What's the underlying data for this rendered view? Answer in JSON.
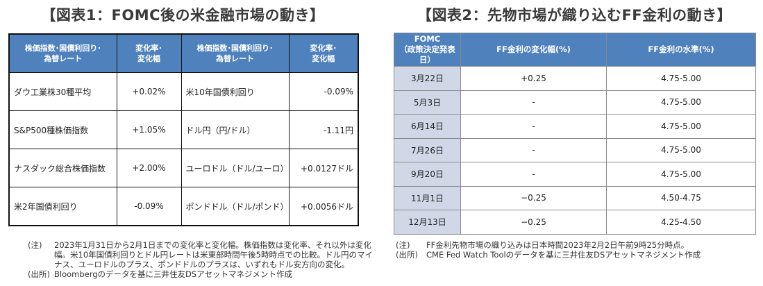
{
  "table1": {
    "title": "【図表1：FOMC後の米金融市場の動き】",
    "headers": [
      "株価指数･国債利回り･\n為替レート",
      "変化率･\n変化幅",
      "株価指数･国債利回り･\n為替レート",
      "変化率･\n変化幅"
    ],
    "rows": [
      [
        "ダウ工業株30種平均",
        "+0.02%",
        "米10年国債利回り",
        "-0.09%"
      ],
      [
        "S&P500種株価指数",
        "+1.05%",
        "ドル円（円/ドル）",
        "-1.11円"
      ],
      [
        "ナスダック総合株価指数",
        "+2.00%",
        "ユーロドル（ドル/ユーロ）",
        "+0.0127ドル"
      ],
      [
        "米2年国債利回り",
        "-0.09%",
        "ポンドドル（ドル/ポンド）",
        "+0.0056ドル"
      ]
    ],
    "note_label": "(注)",
    "note_text": "2023年1月31日から2月1日までの変化率と変化幅。株価指数は変化率、それ以外は変化幅。米10年国債利回りとドル円レートは米東部時間午後5時時点での比較。ドル円のマイナス、ユーロドルのプラス、ポンドドルのプラスは、いずれもドル安方向の変化。",
    "source_label": "(出所)",
    "source_text": "Bloombergのデータを基に三井住友DSアセットマネジメント作成"
  },
  "table2": {
    "title": "【図表2：先物市場が織り込むFF金利の動き】",
    "headers": [
      "FOMC\n（政策決定発表日）",
      "FF金利の変化幅(%)",
      "FF金利の水準(%)"
    ],
    "rows": [
      [
        "3月22日",
        "+0.25",
        "4.75-5.00"
      ],
      [
        "5月3日",
        "-",
        "4.75-5.00"
      ],
      [
        "6月14日",
        "-",
        "4.75-5.00"
      ],
      [
        "7月26日",
        "-",
        "4.75-5.00"
      ],
      [
        "9月20日",
        "-",
        "4.75-5.00"
      ],
      [
        "11月1日",
        "−0.25",
        "4.50-4.75"
      ],
      [
        "12月13日",
        "−0.25",
        "4.25-4.50"
      ]
    ],
    "note_label": "(注)",
    "note_text": "FF金利先物市場の織り込みは日本時間2023年2月2日午前9時25分時点。",
    "source_label": "(出所)",
    "source_text": "CME Fed Watch Toolのデータを基に三井住友DSアセットマネジメント作成"
  },
  "colors": {
    "header_bg": "#4f81bd",
    "date_bg": "#d0d8e8"
  }
}
